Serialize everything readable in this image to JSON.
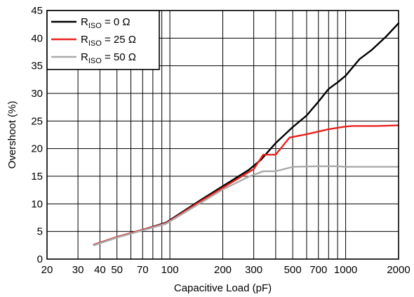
{
  "chart_data": {
    "type": "line",
    "xlabel": "Capacitive Load (pF)",
    "ylabel": "Overshoot (%)",
    "xscale": "log",
    "xlim": [
      20,
      2000
    ],
    "ylim": [
      0,
      45
    ],
    "xticks": [
      20,
      30,
      40,
      50,
      70,
      100,
      200,
      300,
      500,
      700,
      1000,
      2000
    ],
    "xtick_labels": [
      "20",
      "30",
      "40",
      "50",
      "70",
      "100",
      "200",
      "300",
      "500",
      "700",
      "1000",
      "2000"
    ],
    "xgrid": [
      20,
      30,
      40,
      50,
      60,
      70,
      80,
      90,
      100,
      200,
      300,
      400,
      500,
      600,
      700,
      800,
      900,
      1000,
      2000
    ],
    "yticks": [
      0,
      5,
      10,
      15,
      20,
      25,
      30,
      35,
      40,
      45
    ],
    "grid": true,
    "legend_position": "top-left",
    "series": [
      {
        "name_main": "R",
        "name_sub": "ISO",
        "name_suffix": " = 0 Ω",
        "color": "#000000",
        "x": [
          37,
          50,
          70,
          95,
          150,
          200,
          280,
          330,
          400,
          500,
          600,
          700,
          800,
          900,
          1000,
          1200,
          1400,
          1700,
          2000
        ],
        "y": [
          2.6,
          4.0,
          5.3,
          6.6,
          10.7,
          13.2,
          16.1,
          18.0,
          21.0,
          23.9,
          26.0,
          28.5,
          30.8,
          32.0,
          33.2,
          36.2,
          37.8,
          40.3,
          42.7
        ]
      },
      {
        "name_main": "R",
        "name_sub": "ISO",
        "name_suffix": " = 25 Ω",
        "color": "#e8231e",
        "x": [
          37,
          50,
          70,
          95,
          150,
          200,
          300,
          340,
          400,
          480,
          600,
          800,
          1000,
          1100,
          1500,
          2000
        ],
        "y": [
          2.6,
          4.0,
          5.3,
          6.5,
          10.5,
          12.9,
          16.3,
          18.9,
          18.9,
          22.0,
          22.6,
          23.5,
          24.0,
          24.1,
          24.1,
          24.2
        ]
      },
      {
        "name_main": "R",
        "name_sub": "ISO",
        "name_suffix": " = 50 Ω",
        "color": "#aaaaaa",
        "x": [
          37,
          50,
          70,
          95,
          150,
          200,
          280,
          340,
          400,
          500,
          700,
          900,
          1000,
          2000
        ],
        "y": [
          2.5,
          3.9,
          5.2,
          6.4,
          10.2,
          12.6,
          14.9,
          15.9,
          15.9,
          16.7,
          16.8,
          16.8,
          16.7,
          16.7
        ]
      }
    ]
  }
}
